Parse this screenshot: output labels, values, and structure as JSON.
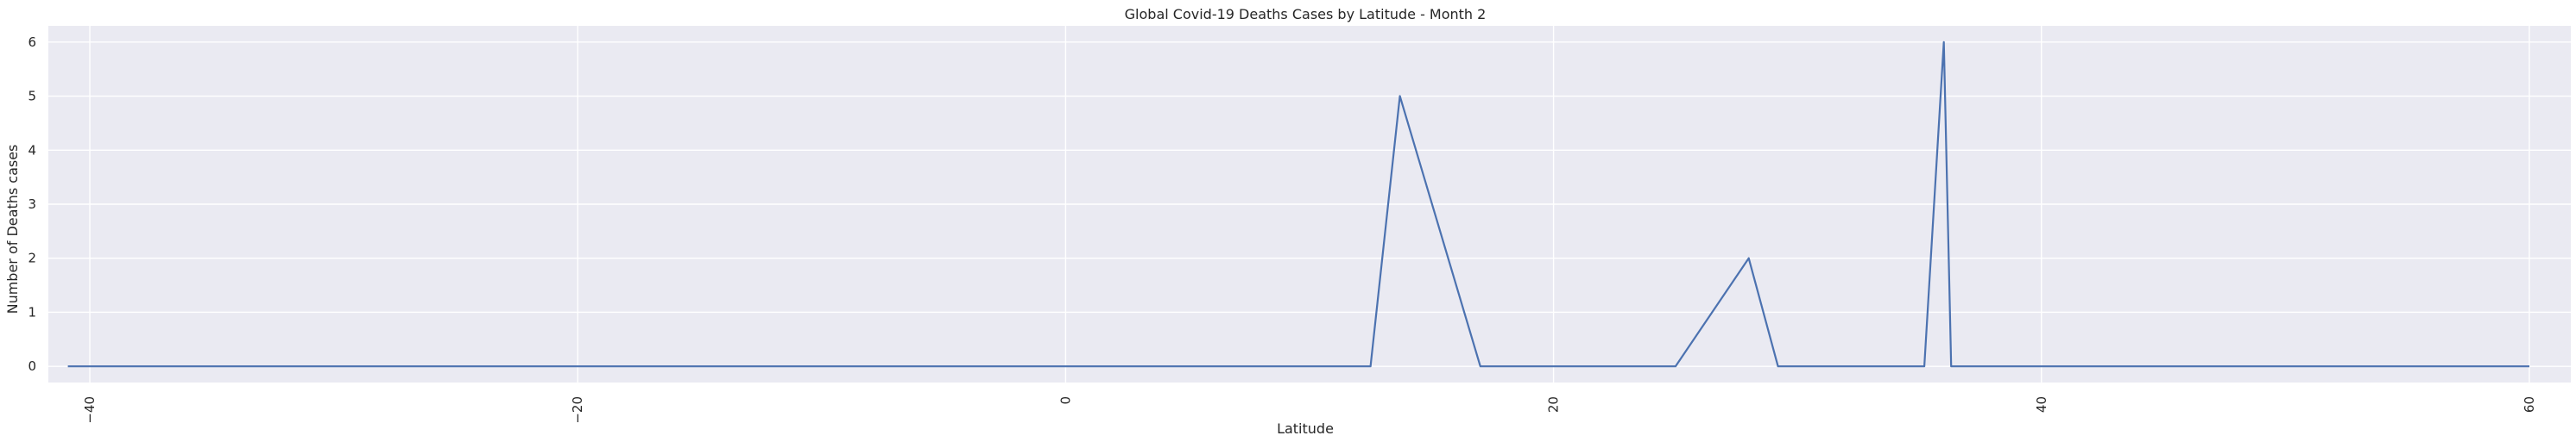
{
  "chart_data": {
    "type": "line",
    "title": "Global Covid-19 Deaths Cases by Latitude - Month 2",
    "xlabel": "Latitude",
    "ylabel": "Number of Deaths cases",
    "xlim": [
      -41.7,
      61.7
    ],
    "ylim": [
      -0.3,
      6.3
    ],
    "xticks": [
      -40,
      -20,
      0,
      20,
      40,
      60
    ],
    "xtick_labels": [
      "−40",
      "−20",
      "0",
      "20",
      "40",
      "60"
    ],
    "yticks": [
      0,
      1,
      2,
      3,
      4,
      5,
      6
    ],
    "ytick_labels": [
      "0",
      "1",
      "2",
      "3",
      "4",
      "5",
      "6"
    ],
    "grid": true,
    "series": [
      {
        "color": "#4c72b0",
        "x": [
          -40.9,
          12.5,
          13.7,
          17.0,
          25.0,
          28.0,
          29.2,
          35.2,
          36.0,
          36.3,
          60.0
        ],
        "y": [
          0,
          0,
          5,
          0,
          0,
          2,
          0,
          0,
          6,
          0,
          0
        ]
      }
    ]
  }
}
